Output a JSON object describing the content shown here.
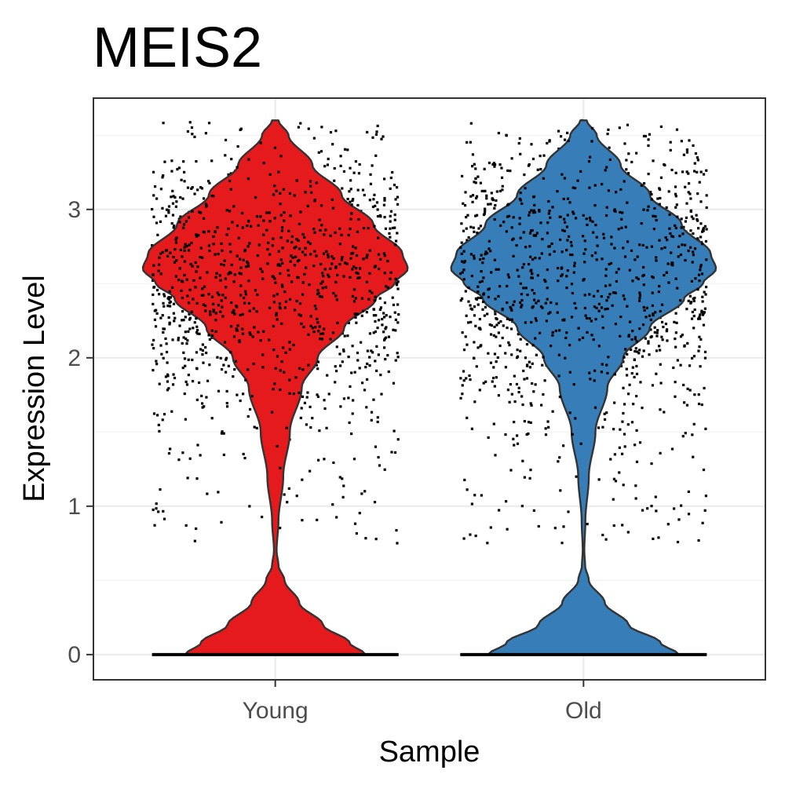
{
  "chart_data": {
    "type": "violin",
    "title": "MEIS2",
    "xlabel": "Sample",
    "ylabel": "Expression Level",
    "categories": [
      "Young",
      "Old"
    ],
    "ylim": [
      -0.17,
      3.75
    ],
    "yticks": [
      0,
      1,
      2,
      3
    ],
    "ytick_labels": [
      "0",
      "1",
      "2",
      "3"
    ],
    "grid": true,
    "legend": "none",
    "series": [
      {
        "category": "Young",
        "color": "#E41A1C",
        "violin_y": [
          0.0,
          0.08,
          0.2,
          0.35,
          0.5,
          0.6,
          0.7,
          0.9,
          1.2,
          1.5,
          1.8,
          2.0,
          2.2,
          2.4,
          2.5,
          2.6,
          2.7,
          2.9,
          3.1,
          3.3,
          3.5,
          3.6
        ],
        "violin_density": [
          0.34,
          0.28,
          0.18,
          0.09,
          0.035,
          0.012,
          0.005,
          0.012,
          0.03,
          0.055,
          0.1,
          0.16,
          0.26,
          0.38,
          0.45,
          0.5,
          0.48,
          0.37,
          0.25,
          0.14,
          0.05,
          0.012
        ],
        "zero_fraction": 0.3,
        "expr_mean": 2.6,
        "expr_sd": 0.4
      },
      {
        "category": "Old",
        "color": "#377EB8",
        "violin_y": [
          0.0,
          0.08,
          0.2,
          0.35,
          0.5,
          0.6,
          0.7,
          0.9,
          1.2,
          1.5,
          1.8,
          2.0,
          2.2,
          2.4,
          2.5,
          2.6,
          2.7,
          2.9,
          3.1,
          3.3,
          3.5,
          3.6
        ],
        "violin_density": [
          0.36,
          0.29,
          0.17,
          0.08,
          0.02,
          0.006,
          0.003,
          0.007,
          0.02,
          0.045,
          0.09,
          0.15,
          0.25,
          0.38,
          0.45,
          0.5,
          0.48,
          0.37,
          0.25,
          0.14,
          0.05,
          0.012
        ],
        "zero_fraction": 0.3,
        "expr_mean": 2.6,
        "expr_sd": 0.42
      }
    ]
  }
}
